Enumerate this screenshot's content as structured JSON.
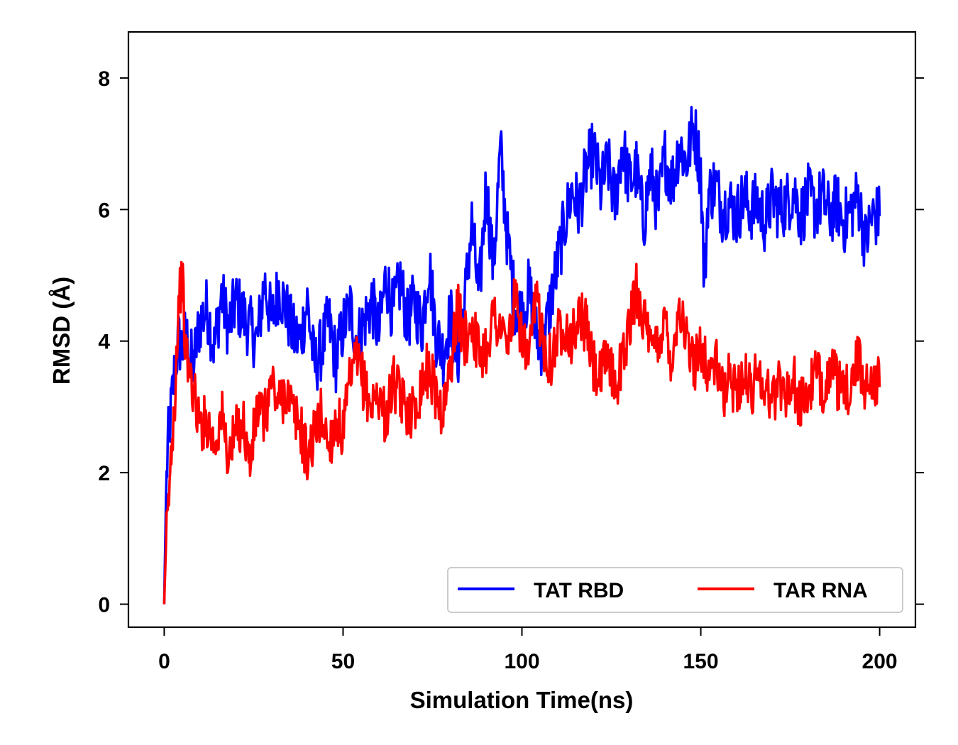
{
  "chart_data": {
    "type": "line",
    "title": "",
    "xlabel": "Simulation Time(ns)",
    "ylabel": "RMSD (Å)",
    "xlim": [
      -10,
      210
    ],
    "ylim": [
      -0.35,
      8.7
    ],
    "xticks": [
      0,
      50,
      100,
      150,
      200
    ],
    "yticks": [
      0,
      2,
      4,
      6,
      8
    ],
    "grid": false,
    "legend": {
      "position": "lower-right",
      "columns": 2
    },
    "series": [
      {
        "name": "TAT RBD",
        "color": "#0000ff",
        "x": [
          0,
          0.5,
          1,
          1.5,
          2,
          3,
          4,
          5,
          6,
          8,
          10,
          12,
          14,
          16,
          18,
          20,
          22,
          24,
          26,
          28,
          30,
          32,
          34,
          36,
          38,
          40,
          42,
          44,
          46,
          48,
          50,
          52,
          54,
          56,
          58,
          60,
          62,
          64,
          66,
          68,
          70,
          72,
          74,
          76,
          78,
          80,
          82,
          84,
          86,
          88,
          90,
          92,
          94,
          96,
          98,
          100,
          102,
          104,
          106,
          108,
          110,
          112,
          114,
          116,
          118,
          120,
          122,
          124,
          126,
          128,
          130,
          132,
          134,
          136,
          138,
          140,
          142,
          144,
          146,
          148,
          150,
          151,
          152,
          154,
          156,
          158,
          160,
          162,
          164,
          166,
          168,
          170,
          172,
          174,
          176,
          178,
          180,
          182,
          184,
          186,
          188,
          190,
          192,
          194,
          196,
          198,
          200
        ],
        "y": [
          0.0,
          1.6,
          2.4,
          2.7,
          3.0,
          3.6,
          4.0,
          3.9,
          4.1,
          3.6,
          4.3,
          4.5,
          3.9,
          4.7,
          4.2,
          4.6,
          4.4,
          4.2,
          4.0,
          4.9,
          4.3,
          4.8,
          4.5,
          4.1,
          4.0,
          4.6,
          3.6,
          3.9,
          4.3,
          3.7,
          4.2,
          4.5,
          4.0,
          4.3,
          4.6,
          4.1,
          5.0,
          4.4,
          4.9,
          4.3,
          4.6,
          4.2,
          5.2,
          4.1,
          3.8,
          4.4,
          3.7,
          4.6,
          5.8,
          4.6,
          6.4,
          5.1,
          6.9,
          5.5,
          4.6,
          4.4,
          4.8,
          4.1,
          3.9,
          4.6,
          5.2,
          5.8,
          6.3,
          6.0,
          6.6,
          6.9,
          6.3,
          6.7,
          6.1,
          7.0,
          6.4,
          6.6,
          5.8,
          6.6,
          6.0,
          6.8,
          6.4,
          7.0,
          6.7,
          7.3,
          6.6,
          4.8,
          6.2,
          6.4,
          6.0,
          6.1,
          5.9,
          6.2,
          6.0,
          6.1,
          5.8,
          6.2,
          6.0,
          6.1,
          6.3,
          5.9,
          6.2,
          6.0,
          6.2,
          5.9,
          6.1,
          5.8,
          6.0,
          6.2,
          5.5,
          5.9,
          5.9
        ]
      },
      {
        "name": "TAR RNA",
        "color": "#ff0000",
        "x": [
          0,
          0.5,
          1,
          1.5,
          2,
          3,
          4,
          5,
          6,
          8,
          10,
          12,
          14,
          16,
          18,
          20,
          22,
          24,
          26,
          28,
          30,
          32,
          34,
          36,
          38,
          40,
          42,
          44,
          46,
          48,
          50,
          52,
          54,
          56,
          58,
          60,
          62,
          64,
          66,
          68,
          70,
          72,
          74,
          76,
          78,
          80,
          82,
          84,
          86,
          88,
          90,
          92,
          94,
          96,
          98,
          100,
          102,
          104,
          106,
          108,
          110,
          112,
          114,
          116,
          118,
          120,
          122,
          124,
          126,
          128,
          130,
          132,
          134,
          136,
          138,
          140,
          142,
          144,
          146,
          148,
          150,
          152,
          154,
          156,
          158,
          160,
          162,
          164,
          166,
          168,
          170,
          172,
          174,
          176,
          178,
          180,
          182,
          184,
          186,
          188,
          190,
          192,
          194,
          196,
          198,
          200
        ],
        "y": [
          0.0,
          0.9,
          1.3,
          1.8,
          2.4,
          3.2,
          4.6,
          5.0,
          3.8,
          3.3,
          2.7,
          2.8,
          2.4,
          2.9,
          2.2,
          2.6,
          2.8,
          2.1,
          3.0,
          2.8,
          3.4,
          3.0,
          3.3,
          2.9,
          2.7,
          2.2,
          2.6,
          2.9,
          2.4,
          2.8,
          2.6,
          3.4,
          3.7,
          3.3,
          3.0,
          3.2,
          2.8,
          3.4,
          3.1,
          3.0,
          2.9,
          3.4,
          3.6,
          3.2,
          2.9,
          3.6,
          4.5,
          4.0,
          4.3,
          3.8,
          3.9,
          4.4,
          4.2,
          3.9,
          4.6,
          4.1,
          3.6,
          4.7,
          4.0,
          3.7,
          4.1,
          4.3,
          4.0,
          4.4,
          4.2,
          3.6,
          3.4,
          3.8,
          3.3,
          3.7,
          4.2,
          4.8,
          4.4,
          3.8,
          4.0,
          4.3,
          3.7,
          4.6,
          4.0,
          3.6,
          4.0,
          3.5,
          3.7,
          3.2,
          3.4,
          3.3,
          3.5,
          3.2,
          3.6,
          3.3,
          3.1,
          3.4,
          3.2,
          3.4,
          3.0,
          3.2,
          3.5,
          3.3,
          3.6,
          3.4,
          3.1,
          3.4,
          3.7,
          3.3,
          3.5,
          3.3
        ]
      }
    ]
  }
}
